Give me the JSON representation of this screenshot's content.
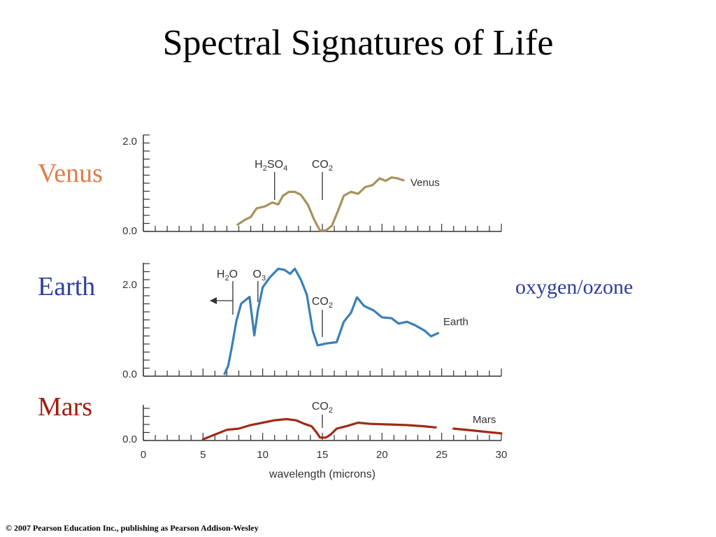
{
  "slide": {
    "title": "Spectral Signatures of Life",
    "labels": [
      {
        "text": "Venus",
        "color": "#e07b4a"
      },
      {
        "text": "Earth",
        "color": "#2e3e9e"
      },
      {
        "text": "Mars",
        "color": "#a01c12"
      }
    ],
    "note": {
      "text": "oxygen/ozone",
      "color": "#2e3e9e"
    },
    "copyright": "© 2007 Pearson Education Inc., publishing as Pearson Addison-Wesley"
  },
  "chart_data": {
    "type": "line",
    "xlabel": "wavelength (microns)",
    "x_ticks": [
      0,
      5,
      10,
      15,
      20,
      25,
      30
    ],
    "xlim": [
      0,
      30
    ],
    "panels": [
      {
        "name": "Venus",
        "color": "#a8925a",
        "ylim": [
          0,
          2.0
        ],
        "y_ticks": [
          "2.0",
          "0.0"
        ],
        "points": [
          [
            7.9,
            0.14
          ],
          [
            8.5,
            0.24
          ],
          [
            9.0,
            0.3
          ],
          [
            9.5,
            0.48
          ],
          [
            10.2,
            0.52
          ],
          [
            10.8,
            0.6
          ],
          [
            11.3,
            0.56
          ],
          [
            11.7,
            0.74
          ],
          [
            12.2,
            0.82
          ],
          [
            12.7,
            0.82
          ],
          [
            13.2,
            0.76
          ],
          [
            13.8,
            0.55
          ],
          [
            14.3,
            0.25
          ],
          [
            14.8,
            0.02
          ],
          [
            15.3,
            0.02
          ],
          [
            15.8,
            0.12
          ],
          [
            16.3,
            0.42
          ],
          [
            16.8,
            0.74
          ],
          [
            17.4,
            0.82
          ],
          [
            18.0,
            0.78
          ],
          [
            18.6,
            0.92
          ],
          [
            19.2,
            0.96
          ],
          [
            19.8,
            1.1
          ],
          [
            20.3,
            1.05
          ],
          [
            20.8,
            1.12
          ],
          [
            21.3,
            1.1
          ],
          [
            21.8,
            1.06
          ]
        ],
        "annotations": [
          {
            "label": "H2SO4",
            "x": 11.0
          },
          {
            "label": "CO2",
            "x": 15.0
          }
        ]
      },
      {
        "name": "Earth",
        "color": "#3a7fb6",
        "ylim": [
          0,
          2.5
        ],
        "y_ticks": [
          "2.0",
          "0.0"
        ],
        "points": [
          [
            6.8,
            0.05
          ],
          [
            7.1,
            0.22
          ],
          [
            7.4,
            0.62
          ],
          [
            7.8,
            1.22
          ],
          [
            8.2,
            1.6
          ],
          [
            8.9,
            1.75
          ],
          [
            9.3,
            0.9
          ],
          [
            9.6,
            1.45
          ],
          [
            10.0,
            1.96
          ],
          [
            10.6,
            2.18
          ],
          [
            11.3,
            2.37
          ],
          [
            11.8,
            2.35
          ],
          [
            12.3,
            2.26
          ],
          [
            12.7,
            2.37
          ],
          [
            13.2,
            2.13
          ],
          [
            13.7,
            1.8
          ],
          [
            14.2,
            1.0
          ],
          [
            14.6,
            0.68
          ],
          [
            15.3,
            0.72
          ],
          [
            16.2,
            0.75
          ],
          [
            16.8,
            1.2
          ],
          [
            17.4,
            1.4
          ],
          [
            17.9,
            1.74
          ],
          [
            18.5,
            1.55
          ],
          [
            19.3,
            1.45
          ],
          [
            20.0,
            1.3
          ],
          [
            20.8,
            1.28
          ],
          [
            21.4,
            1.16
          ],
          [
            22.1,
            1.2
          ],
          [
            22.8,
            1.12
          ],
          [
            23.6,
            1.0
          ],
          [
            24.1,
            0.88
          ],
          [
            24.7,
            0.95
          ]
        ],
        "annotations": [
          {
            "label": "H2O",
            "x": 7.5
          },
          {
            "label": "O3",
            "x": 9.6
          },
          {
            "label": "CO2",
            "x": 15.0
          }
        ]
      },
      {
        "name": "Mars",
        "color": "#a02a18",
        "ylim": [
          0,
          0.6
        ],
        "y_ticks": [
          "0.0"
        ],
        "points": [
          [
            5.0,
            0.02
          ],
          [
            6.0,
            0.1
          ],
          [
            7.0,
            0.18
          ],
          [
            8.0,
            0.2
          ],
          [
            9.0,
            0.26
          ],
          [
            10.0,
            0.3
          ],
          [
            11.0,
            0.34
          ],
          [
            12.0,
            0.36
          ],
          [
            12.8,
            0.34
          ],
          [
            13.5,
            0.28
          ],
          [
            14.1,
            0.24
          ],
          [
            14.5,
            0.14
          ],
          [
            14.8,
            0.05
          ],
          [
            15.3,
            0.05
          ],
          [
            15.7,
            0.1
          ],
          [
            16.2,
            0.2
          ],
          [
            17.0,
            0.24
          ],
          [
            18.0,
            0.3
          ],
          [
            19.0,
            0.28
          ],
          [
            20.5,
            0.27
          ],
          [
            22.0,
            0.26
          ],
          [
            23.5,
            0.24
          ],
          [
            24.5,
            0.22
          ],
          [
            24.8,
            null
          ],
          [
            25.8,
            null
          ],
          [
            26.0,
            0.2
          ],
          [
            27.5,
            0.17
          ],
          [
            29.0,
            0.14
          ],
          [
            30.0,
            0.12
          ]
        ],
        "annotations": [
          {
            "label": "CO2",
            "x": 15.0
          }
        ]
      }
    ]
  }
}
